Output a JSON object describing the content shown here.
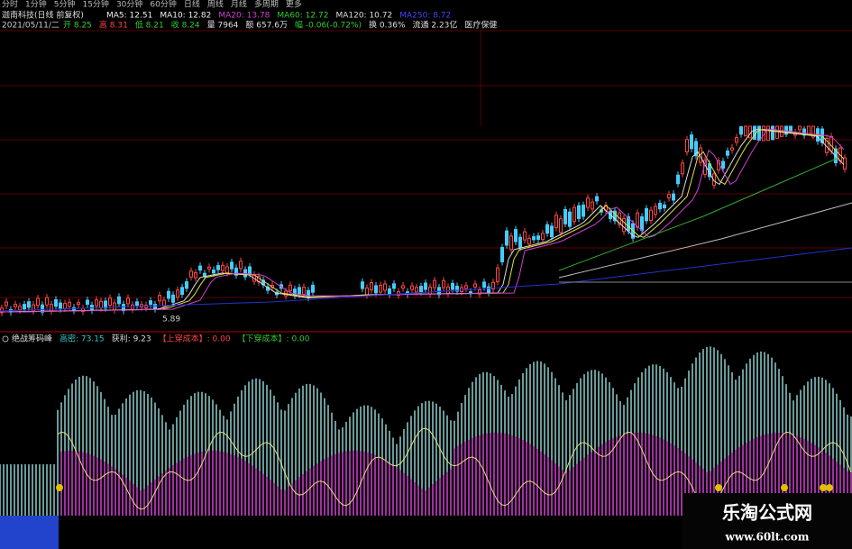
{
  "toolbar": {
    "tabs": [
      "分时",
      "1分钟",
      "5分钟",
      "15分钟",
      "30分钟",
      "60分钟",
      "日线",
      "周线",
      "月线",
      "多周期",
      "更多"
    ]
  },
  "header": {
    "name": "迦南科技(日线 前复权)",
    "ma": [
      "MA5: 12.51",
      "MA10: 12.82",
      "MA20: 13.78",
      "MA60: 12.72",
      "MA120: 10.72",
      "MA250: 8.72"
    ]
  },
  "quote": {
    "date": "2021/05/11/二",
    "items": [
      "开 8.25",
      "高 8.31",
      "低 8.21",
      "收 8.24",
      "量 7964",
      "额 657.6万",
      "幅 -0.06(-0.72%)",
      "换 0.36%",
      "流通 2.23亿",
      "医疗保健"
    ]
  },
  "price_label": "5.89",
  "indicator": {
    "name": "绝战筹码峰",
    "items": [
      "高密: 73.15",
      "获利: 9.23",
      "【上穿成本】: 0.00",
      "【下穿成本】: 0.00"
    ]
  },
  "watermark": {
    "title": "乐淘公式网",
    "url": "www.60lt.com"
  }
}
